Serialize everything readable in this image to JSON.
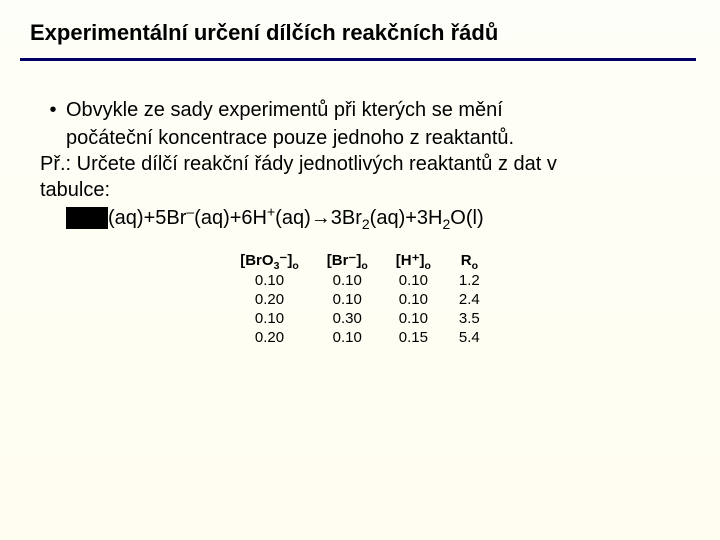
{
  "slide": {
    "background_gradient": [
      "#fefef8",
      "#fffef0"
    ],
    "title": "Experimentální určení dílčích reakčních řádů",
    "underline_color": "#000066",
    "bullet_line1": "Obvykle ze sady experimentů při kterých se mění",
    "bullet_line2": "počáteční koncentrace pouze jednoho z reaktantů.",
    "pr_line1": "Př.: Určete dílčí reakční řády jednotlivých reaktantů z dat v",
    "pr_line2": "tabulce:",
    "equation": "(aq)+5Br⁻(aq)+6H⁺(aq)→3Br₂(aq)+3H₂O(l)"
  },
  "table": {
    "headers": {
      "c1a": "[BrO",
      "c1b": "3",
      "c1c": "⁻",
      "c1d": "]",
      "c1e": "o",
      "c2a": "[Br⁻]",
      "c2b": "o",
      "c3a": "[H⁺]",
      "c3b": "o",
      "c4a": "R",
      "c4b": "o"
    },
    "rows": [
      [
        "0.10",
        "0.10",
        "0.10",
        "1.2"
      ],
      [
        "0.20",
        "0.10",
        "0.10",
        "2.4"
      ],
      [
        "0.10",
        "0.30",
        "0.10",
        "3.5"
      ],
      [
        "0.20",
        "0.10",
        "0.15",
        "5.4"
      ]
    ]
  }
}
